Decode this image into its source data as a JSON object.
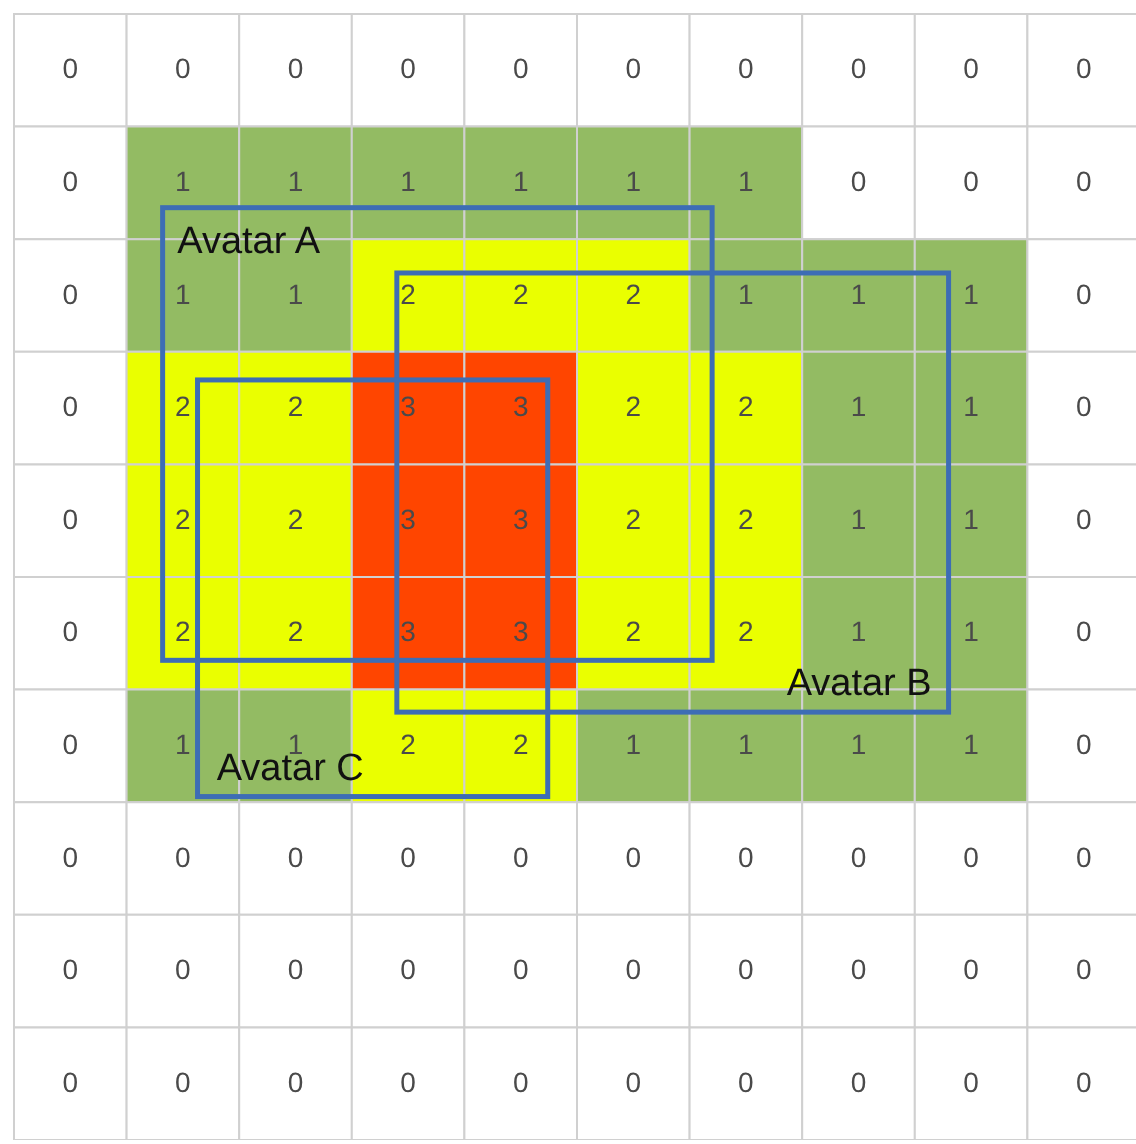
{
  "chart_data": {
    "type": "heatmap",
    "categories": [
      null,
      null,
      null,
      null,
      null,
      null,
      null,
      null,
      null,
      null
    ],
    "y_categories": [
      null,
      null,
      null,
      null,
      null,
      null,
      null,
      null,
      null,
      null
    ],
    "cells": [
      [
        0,
        0,
        0,
        0,
        0,
        0,
        0,
        0,
        0,
        0
      ],
      [
        0,
        1,
        1,
        1,
        1,
        1,
        1,
        0,
        0,
        0
      ],
      [
        0,
        1,
        1,
        2,
        2,
        2,
        1,
        1,
        1,
        0
      ],
      [
        0,
        2,
        2,
        3,
        3,
        2,
        2,
        1,
        1,
        0
      ],
      [
        0,
        2,
        2,
        3,
        3,
        2,
        2,
        1,
        1,
        0
      ],
      [
        0,
        2,
        2,
        3,
        3,
        2,
        2,
        1,
        1,
        0
      ],
      [
        0,
        1,
        1,
        2,
        2,
        1,
        1,
        1,
        1,
        0
      ],
      [
        0,
        0,
        0,
        0,
        0,
        0,
        0,
        0,
        0,
        0
      ],
      [
        0,
        0,
        0,
        0,
        0,
        0,
        0,
        0,
        0,
        0
      ],
      [
        0,
        0,
        0,
        0,
        0,
        0,
        0,
        0,
        0,
        0
      ]
    ],
    "colors": [
      "#ffffff",
      "#93bb63",
      "#eaff00",
      "#ff4500"
    ],
    "data_labels": true,
    "annotations": [
      "Avatar A",
      "Avatar B",
      "Avatar C"
    ]
  }
}
